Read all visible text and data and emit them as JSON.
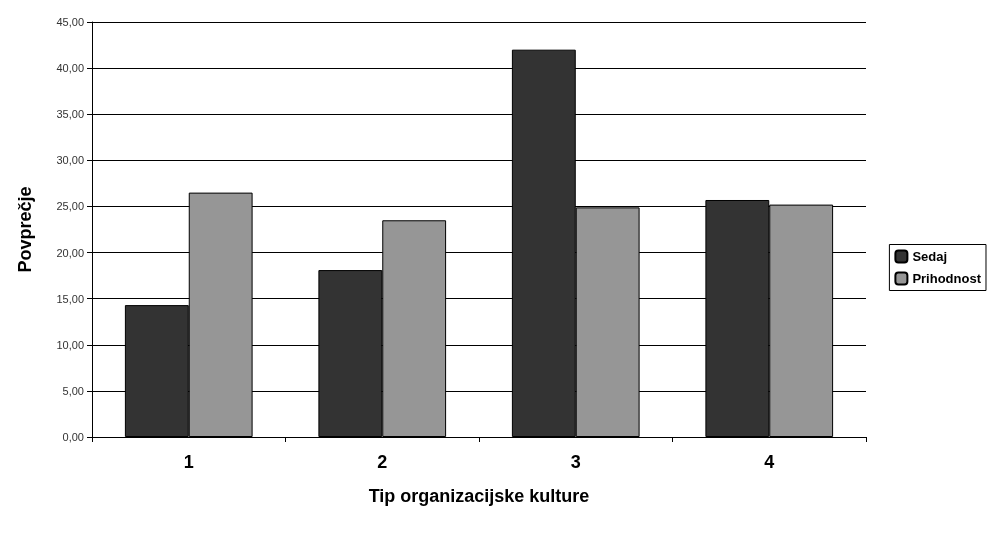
{
  "chart_data": {
    "type": "bar",
    "xlabel": "Tip organizacijske kulture",
    "ylabel": "Povprečje",
    "categories": [
      "1",
      "2",
      "3",
      "4"
    ],
    "series": [
      {
        "name": "Sedaj",
        "color": "#333333",
        "values": [
          14.3,
          18.1,
          42.0,
          25.7
        ]
      },
      {
        "name": "Prihodnost",
        "color": "#969696",
        "values": [
          26.5,
          23.5,
          24.9,
          25.2
        ]
      }
    ],
    "ylim": [
      0,
      45
    ],
    "yticks": [
      {
        "value": 0,
        "label": "0,00"
      },
      {
        "value": 5,
        "label": "5,00"
      },
      {
        "value": 10,
        "label": "10,00"
      },
      {
        "value": 15,
        "label": "15,00"
      },
      {
        "value": 20,
        "label": "20,00"
      },
      {
        "value": 25,
        "label": "25,00"
      },
      {
        "value": 30,
        "label": "30,00"
      },
      {
        "value": 35,
        "label": "35,00"
      },
      {
        "value": 40,
        "label": "40,00"
      },
      {
        "value": 45,
        "label": "45,00"
      }
    ],
    "grid": "y",
    "legend": "right"
  }
}
